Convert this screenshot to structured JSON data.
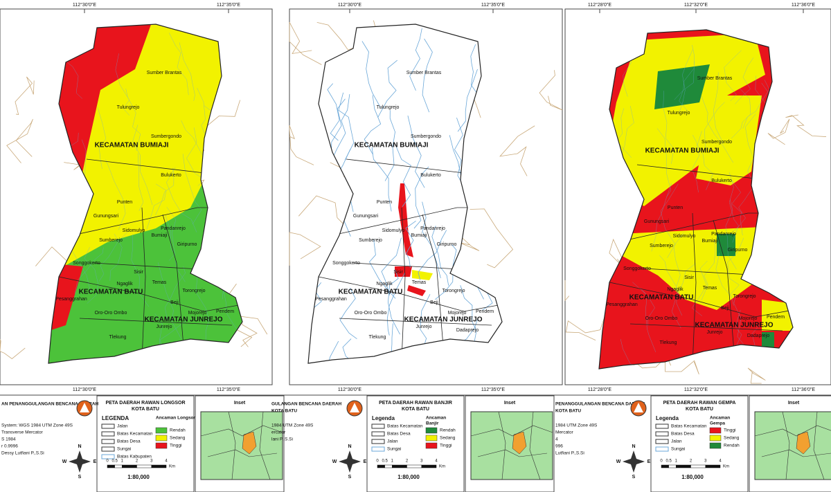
{
  "panels": [
    {
      "coords_top": [
        "112°30'0\"E",
        "112°35'0\"E"
      ],
      "coords_bottom": [
        "112°30'0\"E",
        "112°35'0\"E"
      ],
      "places": [
        "Sumber Brantas",
        "Tulungrejo",
        "Sumbergondo",
        "KECAMATAN BUMIAJI",
        "Bulukerto",
        "Punten",
        "Gunungsari",
        "Sidomulyo",
        "Pandanrejo",
        "Bumiaji",
        "Sumberejo",
        "Giripurno",
        "Songgokerto",
        "Sisir",
        "Temas",
        "Ngaglik",
        "KECAMATAN BATU",
        "Torongrejo",
        "Pesanggrahan",
        "Beji",
        "Mojorejo",
        "Pendem",
        "Oro-Oro Ombo",
        "KECAMATAN JUNREJO",
        "Junrejo",
        "Tlekung"
      ],
      "footer": {
        "org": [
          "AN PENANGGULANGAN BENCANA DAERAH"
        ],
        "info": [
          "System: WGS 1984 UTM Zone 49S",
          "Transverse Mercator",
          "S 1984",
          "r 0.9996",
          "Dessy Lutfiani P.,S.Si"
        ],
        "title": [
          "PETA DAERAH RAWAN LONGSOR",
          "KOTA BATU"
        ],
        "legend_title": "LEGENDA",
        "lines": [
          "Jalan",
          "Batas Kecamatan",
          "Batas Desa",
          "Sungai",
          "Batas Kabupaten"
        ],
        "hazard_title": [
          "Ancaman Longsor"
        ],
        "hazard": [
          {
            "label": "Rendah",
            "color": "#4cc23a"
          },
          {
            "label": "Sedang",
            "color": "#f2f200"
          },
          {
            "label": "Tinggi",
            "color": "#e8141c"
          }
        ],
        "scale_ticks": [
          0,
          0.5,
          1,
          2,
          3,
          4
        ],
        "scale_unit": "Km",
        "scale": "1:80,000",
        "inset": "Inset",
        "compass": [
          "N",
          "E",
          "S",
          "W"
        ]
      }
    },
    {
      "coords_top": [
        "112°30'0\"E",
        "112°35'0\"E"
      ],
      "coords_bottom": [
        "112°30'0\"E",
        "112°35'0\"E"
      ],
      "places": [
        "Sumber Brantas",
        "Tulungrejo",
        "Sumbergondo",
        "KECAMATAN BUMIAJI",
        "Bulukerto",
        "Punten",
        "Gunungsari",
        "Sidomulyo",
        "Pandanrejo",
        "Bumiaji",
        "Sumberejo",
        "Giripurno",
        "Songgokerto",
        "Sisir",
        "Temas",
        "Ngaglik",
        "KECAMATAN BATU",
        "Torongrejo",
        "Pesanggrahan",
        "Beji",
        "Mojorejo",
        "Pendem",
        "Oro-Oro Ombo",
        "KECAMATAN JUNREJO",
        "Junrejo",
        "Tlekung",
        "Dadaprejo"
      ],
      "footer": {
        "org": [
          "GULANGAN BENCANA DAERAH",
          "KOTA BATU"
        ],
        "info": [
          "1984 UTM Zone 49S",
          "ercator",
          "lani P.,S.Si"
        ],
        "title": [
          "PETA DAERAH RAWAN BANJIR",
          "KOTA BATU"
        ],
        "legend_title": "Legenda",
        "lines": [
          "Batas Kecamatan",
          "Batas Desa",
          "Jalan",
          "Sungai"
        ],
        "hazard_title": [
          "Ancaman",
          "Banjir"
        ],
        "hazard": [
          {
            "label": "Rendah",
            "color": "#1f8a3a"
          },
          {
            "label": "Sedang",
            "color": "#f2f200"
          },
          {
            "label": "Tinggi",
            "color": "#e8141c"
          }
        ],
        "scale_ticks": [
          0,
          0.5,
          1,
          2,
          3,
          4
        ],
        "scale_unit": "Km",
        "scale": "1:80,000",
        "inset": "Inset",
        "compass": [
          "N",
          "E",
          "S",
          "W"
        ]
      }
    },
    {
      "coords_top": [
        "112°28'0\"E",
        "112°32'0\"E",
        "112°36'0\"E"
      ],
      "coords_bottom": [
        "112°28'0\"E",
        "112°32'0\"E",
        "112°36'0\"E"
      ],
      "places": [
        "Sumber Brantas",
        "Tulungrejo",
        "Sumbergondo",
        "KECAMATAN BUMIAJI",
        "Bulukerto",
        "Punten",
        "Gunungsari",
        "Sidomulyo",
        "Pandanrejo",
        "Bumiaji",
        "Sumberejo",
        "Giripurno",
        "Songgokerto",
        "Sisir",
        "Temas",
        "Ngaglik",
        "KECAMATAN BATU",
        "Torongrejo",
        "Pesanggrahan",
        "Beji",
        "Mojorejo",
        "Pendem",
        "Oro-Oro Ombo",
        "KECAMATAN JUNREJO",
        "Junrejo",
        "Tlekung",
        "Dadaprejo"
      ],
      "footer": {
        "org": [
          "PENANGGULANGAN BENCANA DAERAH",
          "KOTA BATU"
        ],
        "info": [
          "1984 UTM Zone 49S",
          "Mercator",
          "4",
          "996",
          "Lutfiani P.,S.Si"
        ],
        "title": [
          "PETA DAERAH RAWAN GEMPA",
          "KOTA BATU"
        ],
        "legend_title": "Legenda",
        "lines": [
          "Batas Kecamatan",
          "Batas Desa",
          "Jalan",
          "Sungai"
        ],
        "hazard_title": [
          "Ancaman",
          "Gempa"
        ],
        "hazard": [
          {
            "label": "Tinggi",
            "color": "#e8141c"
          },
          {
            "label": "Sedang",
            "color": "#f2f200"
          },
          {
            "label": "Rendah",
            "color": "#1f8a3a"
          }
        ],
        "scale_ticks": [
          0,
          0.5,
          1,
          2,
          3,
          4
        ],
        "scale_unit": "Km",
        "scale": "1:80,000",
        "inset": "Inset",
        "compass": [
          "N",
          "E",
          "S",
          "W"
        ]
      }
    }
  ]
}
